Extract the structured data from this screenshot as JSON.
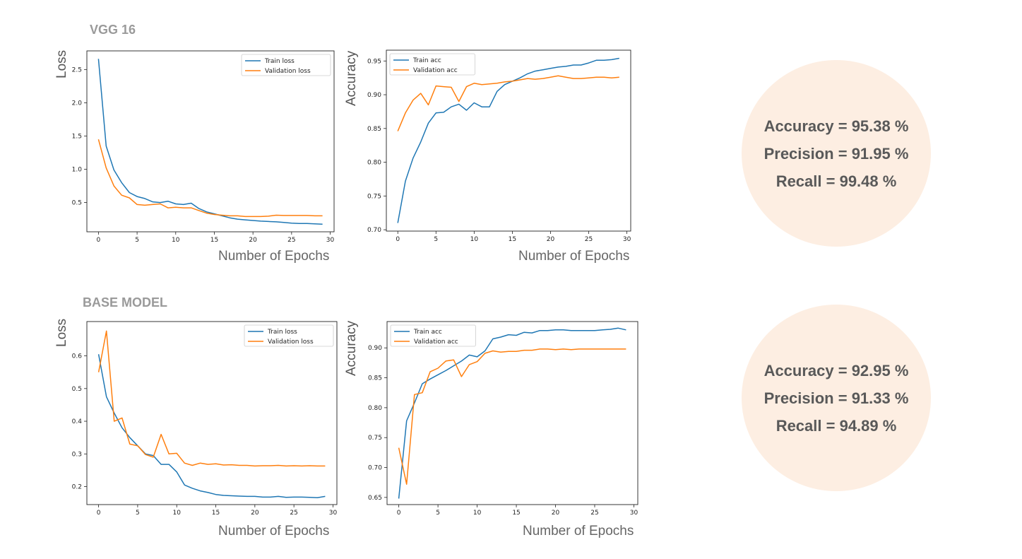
{
  "sections": [
    {
      "title": "VGG 16",
      "metrics": {
        "accuracy": "Accuracy = 95.38 %",
        "precision": "Precision = 91.95 %",
        "recall": "Recall = 99.48 %"
      }
    },
    {
      "title": "BASE MODEL",
      "metrics": {
        "accuracy": "Accuracy = 92.95 %",
        "precision": "Precision = 91.33 %",
        "recall": "Recall = 94.89 %"
      }
    }
  ],
  "colors": {
    "train": "#1f77b4",
    "validation": "#ff7f0e",
    "circle": "#fdeee2"
  },
  "chart_data": [
    {
      "id": "vgg-loss",
      "type": "line",
      "title": "",
      "xlabel": "Number of Epochs",
      "ylabel": "Loss",
      "xlim": [
        -1.5,
        30.5
      ],
      "ylim": [
        0.06,
        2.78
      ],
      "xticks": [
        0,
        5,
        10,
        15,
        20,
        25,
        30
      ],
      "yticks": [
        0.5,
        1.0,
        1.5,
        2.0,
        2.5
      ],
      "ytick_labels": [
        "0.5",
        "1.0",
        "1.5",
        "2.0",
        "2.5"
      ],
      "legend": "top-right",
      "x": [
        0,
        1,
        2,
        3,
        4,
        5,
        6,
        7,
        8,
        9,
        10,
        11,
        12,
        13,
        14,
        15,
        16,
        17,
        18,
        19,
        20,
        21,
        22,
        23,
        24,
        25,
        26,
        27,
        28,
        29
      ],
      "series": [
        {
          "name": "Train loss",
          "color": "#1f77b4",
          "values": [
            2.66,
            1.35,
            0.99,
            0.8,
            0.65,
            0.59,
            0.56,
            0.51,
            0.5,
            0.52,
            0.48,
            0.47,
            0.49,
            0.41,
            0.36,
            0.33,
            0.3,
            0.27,
            0.25,
            0.24,
            0.23,
            0.22,
            0.215,
            0.21,
            0.2,
            0.19,
            0.185,
            0.185,
            0.18,
            0.175
          ]
        },
        {
          "name": "Validation loss",
          "color": "#ff7f0e",
          "values": [
            1.45,
            1.02,
            0.75,
            0.61,
            0.57,
            0.47,
            0.46,
            0.47,
            0.48,
            0.42,
            0.43,
            0.42,
            0.42,
            0.38,
            0.34,
            0.32,
            0.31,
            0.3,
            0.3,
            0.29,
            0.29,
            0.29,
            0.295,
            0.31,
            0.305,
            0.305,
            0.305,
            0.305,
            0.3,
            0.3
          ]
        }
      ]
    },
    {
      "id": "vgg-acc",
      "type": "line",
      "title": "",
      "xlabel": "Number of Epochs",
      "ylabel": "Accuracy",
      "xlim": [
        -1.5,
        30.5
      ],
      "ylim": [
        0.698,
        0.966
      ],
      "xticks": [
        0,
        5,
        10,
        15,
        20,
        25,
        30
      ],
      "yticks": [
        0.7,
        0.75,
        0.8,
        0.85,
        0.9,
        0.95
      ],
      "ytick_labels": [
        "0.70",
        "0.75",
        "0.80",
        "0.85",
        "0.90",
        "0.95"
      ],
      "legend": "top-left",
      "x": [
        0,
        1,
        2,
        3,
        4,
        5,
        6,
        7,
        8,
        9,
        10,
        11,
        12,
        13,
        14,
        15,
        16,
        17,
        18,
        19,
        20,
        21,
        22,
        23,
        24,
        25,
        26,
        27,
        28,
        29
      ],
      "series": [
        {
          "name": "Train acc",
          "color": "#1f77b4",
          "values": [
            0.71,
            0.772,
            0.806,
            0.83,
            0.858,
            0.873,
            0.874,
            0.882,
            0.886,
            0.877,
            0.888,
            0.882,
            0.882,
            0.905,
            0.915,
            0.92,
            0.925,
            0.931,
            0.935,
            0.937,
            0.939,
            0.941,
            0.942,
            0.944,
            0.944,
            0.947,
            0.951,
            0.951,
            0.952,
            0.954
          ]
        },
        {
          "name": "Validation acc",
          "color": "#ff7f0e",
          "values": [
            0.846,
            0.873,
            0.892,
            0.902,
            0.885,
            0.913,
            0.912,
            0.911,
            0.89,
            0.912,
            0.917,
            0.915,
            0.916,
            0.917,
            0.919,
            0.92,
            0.922,
            0.924,
            0.923,
            0.924,
            0.926,
            0.928,
            0.926,
            0.924,
            0.924,
            0.925,
            0.926,
            0.926,
            0.925,
            0.926
          ]
        }
      ]
    },
    {
      "id": "base-loss",
      "type": "line",
      "title": "",
      "xlabel": "Number of Epochs",
      "ylabel": "Loss",
      "xlim": [
        -1.5,
        30.5
      ],
      "ylim": [
        0.145,
        0.705
      ],
      "xticks": [
        0,
        5,
        10,
        15,
        20,
        25,
        30
      ],
      "yticks": [
        0.2,
        0.3,
        0.4,
        0.5,
        0.6
      ],
      "ytick_labels": [
        "0.2",
        "0.3",
        "0.4",
        "0.5",
        "0.6"
      ],
      "legend": "top-right",
      "x": [
        0,
        1,
        2,
        3,
        4,
        5,
        6,
        7,
        8,
        9,
        10,
        11,
        12,
        13,
        14,
        15,
        16,
        17,
        18,
        19,
        20,
        21,
        22,
        23,
        24,
        25,
        26,
        27,
        28,
        29
      ],
      "series": [
        {
          "name": "Train loss",
          "color": "#1f77b4",
          "values": [
            0.605,
            0.475,
            0.425,
            0.38,
            0.35,
            0.325,
            0.3,
            0.295,
            0.268,
            0.268,
            0.245,
            0.205,
            0.195,
            0.187,
            0.182,
            0.176,
            0.173,
            0.172,
            0.171,
            0.17,
            0.17,
            0.168,
            0.168,
            0.17,
            0.167,
            0.168,
            0.168,
            0.167,
            0.166,
            0.17
          ]
        },
        {
          "name": "Validation loss",
          "color": "#ff7f0e",
          "values": [
            0.55,
            0.676,
            0.4,
            0.41,
            0.33,
            0.325,
            0.298,
            0.29,
            0.36,
            0.3,
            0.302,
            0.272,
            0.265,
            0.272,
            0.268,
            0.27,
            0.266,
            0.267,
            0.265,
            0.265,
            0.263,
            0.264,
            0.264,
            0.265,
            0.263,
            0.264,
            0.263,
            0.264,
            0.263,
            0.263
          ]
        }
      ]
    },
    {
      "id": "base-acc",
      "type": "line",
      "title": "",
      "xlabel": "Number of Epochs",
      "ylabel": "Accuracy",
      "xlim": [
        -1.5,
        30.5
      ],
      "ylim": [
        0.638,
        0.944
      ],
      "xticks": [
        0,
        5,
        10,
        15,
        20,
        25,
        30
      ],
      "yticks": [
        0.65,
        0.7,
        0.75,
        0.8,
        0.85,
        0.9
      ],
      "ytick_labels": [
        "0.65",
        "0.70",
        "0.75",
        "0.80",
        "0.85",
        "0.90"
      ],
      "legend": "top-left",
      "x": [
        0,
        1,
        2,
        3,
        4,
        5,
        6,
        7,
        8,
        9,
        10,
        11,
        12,
        13,
        14,
        15,
        16,
        17,
        18,
        19,
        20,
        21,
        22,
        23,
        24,
        25,
        26,
        27,
        28,
        29
      ],
      "series": [
        {
          "name": "Train acc",
          "color": "#1f77b4",
          "values": [
            0.648,
            0.778,
            0.808,
            0.84,
            0.848,
            0.855,
            0.862,
            0.87,
            0.878,
            0.888,
            0.885,
            0.895,
            0.915,
            0.918,
            0.922,
            0.921,
            0.926,
            0.925,
            0.929,
            0.929,
            0.93,
            0.93,
            0.929,
            0.929,
            0.929,
            0.929,
            0.93,
            0.931,
            0.933,
            0.93
          ]
        },
        {
          "name": "Validation acc",
          "color": "#ff7f0e",
          "values": [
            0.733,
            0.672,
            0.822,
            0.825,
            0.86,
            0.866,
            0.878,
            0.88,
            0.852,
            0.872,
            0.877,
            0.891,
            0.895,
            0.893,
            0.894,
            0.894,
            0.896,
            0.896,
            0.898,
            0.898,
            0.897,
            0.898,
            0.897,
            0.898,
            0.898,
            0.898,
            0.898,
            0.898,
            0.898,
            0.898
          ]
        }
      ]
    }
  ]
}
